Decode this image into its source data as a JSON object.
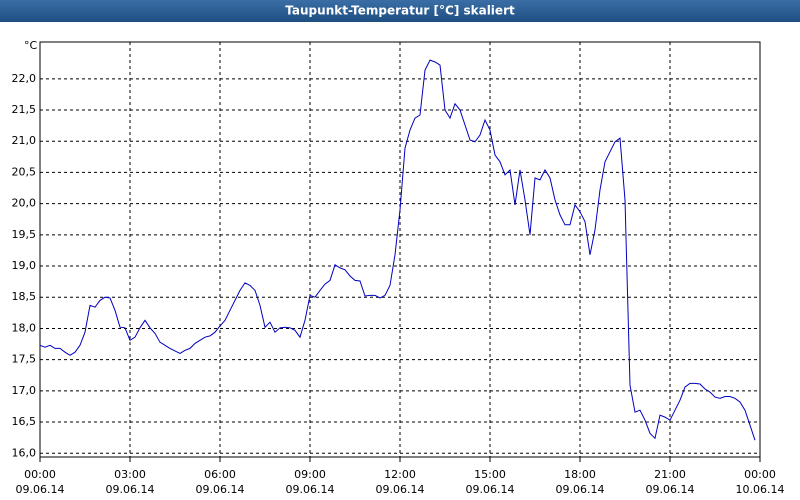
{
  "chart_data": {
    "type": "line",
    "title": "Taupunkt-Temperatur [°C] skaliert",
    "y_unit": "°C",
    "x": [
      0,
      10,
      20,
      30,
      40,
      50,
      60,
      70,
      80,
      90,
      100,
      110,
      120,
      130,
      140,
      150,
      160,
      170,
      180,
      190,
      200,
      210,
      220,
      230,
      240,
      250,
      260,
      270,
      280,
      290,
      300,
      310,
      320,
      330,
      340,
      350,
      360,
      370,
      380,
      390,
      400,
      410,
      420,
      430,
      440,
      450,
      460,
      470,
      480,
      490,
      500,
      510,
      520,
      530,
      540,
      550,
      560,
      570,
      580,
      590,
      600,
      610,
      620,
      630,
      640,
      650,
      660,
      670,
      680,
      690,
      700,
      710,
      720,
      730,
      740,
      750,
      760,
      770,
      780,
      790,
      800,
      810,
      820,
      830,
      840,
      850,
      860,
      870,
      880,
      890,
      900,
      910,
      920,
      930,
      940,
      950,
      960,
      970,
      980,
      990,
      1000,
      1010,
      1020,
      1030,
      1040,
      1050,
      1060,
      1070,
      1080,
      1090,
      1100,
      1110,
      1120,
      1130,
      1140,
      1150,
      1160,
      1170,
      1180,
      1190,
      1200,
      1210,
      1220,
      1230,
      1240,
      1250,
      1260,
      1270,
      1280,
      1290,
      1300,
      1310,
      1320,
      1330,
      1340,
      1350,
      1360,
      1370,
      1380,
      1390,
      1400,
      1410,
      1420,
      1430
    ],
    "series": [
      {
        "color": "#0000c0",
        "values": [
          17.73,
          17.7,
          17.73,
          17.68,
          17.68,
          17.62,
          17.57,
          17.62,
          17.73,
          17.94,
          18.37,
          18.34,
          18.45,
          18.5,
          18.49,
          18.29,
          18.02,
          18.01,
          17.81,
          17.86,
          18.01,
          18.13,
          18.01,
          17.92,
          17.78,
          17.73,
          17.68,
          17.64,
          17.6,
          17.65,
          17.68,
          17.76,
          17.81,
          17.86,
          17.88,
          17.94,
          18.04,
          18.13,
          18.29,
          18.45,
          18.61,
          18.73,
          18.69,
          18.61,
          18.37,
          18.02,
          18.1,
          17.94,
          18.01,
          18.02,
          18.01,
          17.97,
          17.86,
          18.13,
          18.53,
          18.5,
          18.61,
          18.71,
          18.77,
          19.02,
          18.97,
          18.94,
          18.84,
          18.77,
          18.76,
          18.52,
          18.53,
          18.53,
          18.49,
          18.53,
          18.69,
          19.18,
          19.9,
          20.89,
          21.18,
          21.37,
          21.42,
          22.14,
          22.3,
          22.27,
          22.22,
          21.5,
          21.37,
          21.6,
          21.5,
          21.26,
          21.02,
          20.99,
          21.1,
          21.34,
          21.18,
          20.78,
          20.67,
          20.46,
          20.54,
          19.98,
          20.54,
          20.06,
          19.5,
          20.41,
          20.38,
          20.54,
          20.41,
          20.06,
          19.82,
          19.66,
          19.66,
          19.98,
          19.87,
          19.71,
          19.18,
          19.58,
          20.22,
          20.67,
          20.83,
          20.99,
          21.05,
          20.06,
          17.09,
          16.66,
          16.69,
          16.53,
          16.32,
          16.24,
          16.61,
          16.58,
          16.53,
          16.69,
          16.85,
          17.06,
          17.12,
          17.12,
          17.11,
          17.03,
          16.98,
          16.9,
          16.88,
          16.91,
          16.91,
          16.88,
          16.82,
          16.69,
          16.45,
          16.21
        ]
      }
    ],
    "xlim": [
      0,
      1440
    ],
    "xticks": [
      {
        "value": 0,
        "label": "00:00",
        "date": "09.06.14"
      },
      {
        "value": 180,
        "label": "03:00",
        "date": "09.06.14"
      },
      {
        "value": 360,
        "label": "06:00",
        "date": "09.06.14"
      },
      {
        "value": 540,
        "label": "09:00",
        "date": "09.06.14"
      },
      {
        "value": 720,
        "label": "12:00",
        "date": "09.06.14"
      },
      {
        "value": 900,
        "label": "15:00",
        "date": "09.06.14"
      },
      {
        "value": 1080,
        "label": "18:00",
        "date": "09.06.14"
      },
      {
        "value": 1260,
        "label": "21:00",
        "date": "09.06.14"
      },
      {
        "value": 1440,
        "label": "00:00",
        "date": "10.06.14"
      }
    ],
    "ylim": [
      15.94,
      22.59
    ],
    "yticks": [
      {
        "value": 16,
        "label": "16,0"
      },
      {
        "value": 16.5,
        "label": "16,5"
      },
      {
        "value": 17,
        "label": "17,0"
      },
      {
        "value": 17.5,
        "label": "17,5"
      },
      {
        "value": 18,
        "label": "18,0"
      },
      {
        "value": 18.5,
        "label": "18,5"
      },
      {
        "value": 19,
        "label": "19,0"
      },
      {
        "value": 19.5,
        "label": "19,5"
      },
      {
        "value": 20,
        "label": "20,0"
      },
      {
        "value": 20.5,
        "label": "20,5"
      },
      {
        "value": 21,
        "label": "21,0"
      },
      {
        "value": 21.5,
        "label": "21,5"
      },
      {
        "value": 22,
        "label": "22,0"
      }
    ],
    "grid": true
  }
}
